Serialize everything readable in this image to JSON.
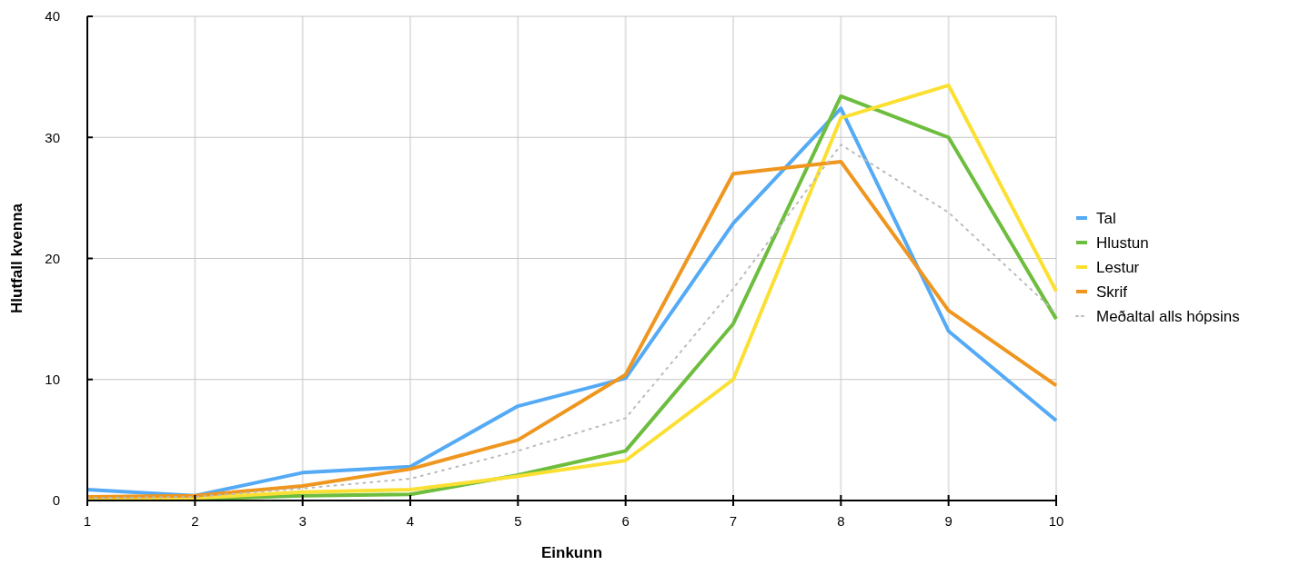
{
  "chart_data": {
    "type": "line",
    "xlabel": "Einkunn",
    "ylabel": "Hlutfall kvenna",
    "x": [
      1,
      2,
      3,
      4,
      5,
      6,
      7,
      8,
      9,
      10
    ],
    "xlim": [
      1,
      10
    ],
    "xticks": [
      1,
      2,
      3,
      4,
      5,
      6,
      7,
      8,
      9,
      10
    ],
    "ylim": [
      0,
      40
    ],
    "yticks": [
      0,
      10,
      20,
      30,
      40
    ],
    "grid": true,
    "legend": "right",
    "marker": "none",
    "series": [
      {
        "name": "Tal",
        "color": "#55aaf5",
        "values": [
          0.9,
          0.4,
          2.3,
          2.8,
          7.8,
          10.1,
          22.9,
          32.4,
          14.0,
          6.6
        ]
      },
      {
        "name": "Hlustun",
        "color": "#6dbd3e",
        "values": [
          0.1,
          0.1,
          0.4,
          0.5,
          2.1,
          4.1,
          14.6,
          33.4,
          30.0,
          15.0
        ]
      },
      {
        "name": "Lestur",
        "color": "#fbe033",
        "values": [
          0.2,
          0.2,
          0.7,
          0.9,
          2.0,
          3.3,
          10.0,
          31.6,
          34.3,
          17.3
        ]
      },
      {
        "name": "Skrif",
        "color": "#ef961f",
        "values": [
          0.3,
          0.4,
          1.2,
          2.6,
          5.0,
          10.4,
          27.0,
          28.0,
          15.7,
          9.5
        ]
      },
      {
        "name": "Meðaltal alls hópsins",
        "color": "#bbbbbb",
        "line_style": "dotted",
        "values": [
          0.2,
          0.3,
          1.0,
          1.8,
          4.1,
          6.8,
          17.5,
          29.4,
          23.8,
          15.5
        ]
      }
    ]
  }
}
